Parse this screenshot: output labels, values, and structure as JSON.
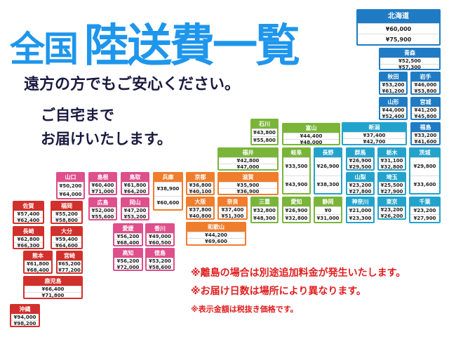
{
  "title": {
    "part1": "全国",
    "part2": "陸送費一覧"
  },
  "tagline": "遠方の方でもご安心ください。",
  "tagline2_line1": "ご自宅まで",
  "tagline2_line2": "お届けいたします。",
  "region_colors": {
    "hokkaido_tohoku": "#1f7cc4",
    "kanto_koshinetsu": "#23a3cc",
    "chubu": "#7ab53a",
    "kinki": "#ef7d2c",
    "chugoku_shikoku": "#de4f8c",
    "kyushu": "#d2302c"
  },
  "prefectures": [
    {
      "name": "北海道",
      "prices": [
        "¥60,000",
        "¥75,900"
      ],
      "region": "hokkaido_tohoku"
    },
    {
      "name": "青森",
      "prices": [
        "¥52,500",
        "¥57,300"
      ],
      "region": "hokkaido_tohoku"
    },
    {
      "name": "秋田",
      "prices": [
        "¥53,200",
        "¥61,200"
      ],
      "region": "hokkaido_tohoku"
    },
    {
      "name": "岩手",
      "prices": [
        "¥46,000",
        "¥53,800"
      ],
      "region": "hokkaido_tohoku"
    },
    {
      "name": "山形",
      "prices": [
        "¥44,000",
        "¥52,400"
      ],
      "region": "hokkaido_tohoku"
    },
    {
      "name": "宮城",
      "prices": [
        "¥41,200",
        "¥45,800"
      ],
      "region": "hokkaido_tohoku"
    },
    {
      "name": "新潟",
      "prices": [
        "¥37,400",
        "¥42,700"
      ],
      "region": "kanto_koshinetsu"
    },
    {
      "name": "福島",
      "prices": [
        "¥33,200",
        "¥41,600"
      ],
      "region": "hokkaido_tohoku"
    },
    {
      "name": "石川",
      "prices": [
        "¥43,800",
        "¥55,800"
      ],
      "region": "chubu"
    },
    {
      "name": "富山",
      "prices": [
        "¥44,400",
        "¥48,000"
      ],
      "region": "chubu"
    },
    {
      "name": "福井",
      "prices": [
        "¥42,800",
        "¥47,000"
      ],
      "region": "chubu"
    },
    {
      "name": "岐阜",
      "prices": [
        "¥33,500",
        "¥43,900"
      ],
      "region": "chubu"
    },
    {
      "name": "長野",
      "prices": [
        "¥26,900",
        "¥38,300"
      ],
      "region": "kanto_koshinetsu"
    },
    {
      "name": "群馬",
      "prices": [
        "¥26,900",
        "¥29,500"
      ],
      "region": "kanto_koshinetsu"
    },
    {
      "name": "栃木",
      "prices": [
        "¥31,100",
        "¥32,800"
      ],
      "region": "kanto_koshinetsu"
    },
    {
      "name": "茨城",
      "prices": [
        "¥29,800",
        "¥33,600"
      ],
      "region": "kanto_koshinetsu"
    },
    {
      "name": "山梨",
      "prices": [
        "¥23,200",
        "¥27,800"
      ],
      "region": "kanto_koshinetsu"
    },
    {
      "name": "埼玉",
      "prices": [
        "¥25,500",
        "¥27,900"
      ],
      "region": "kanto_koshinetsu"
    },
    {
      "name": "京都",
      "prices": [
        "¥36,800",
        "¥40,100"
      ],
      "region": "kinki"
    },
    {
      "name": "滋賀",
      "prices": [
        "¥35,900",
        "¥36,900"
      ],
      "region": "kinki"
    },
    {
      "name": "兵庫",
      "prices": [
        "¥38,900",
        "¥60,600"
      ],
      "region": "kinki"
    },
    {
      "name": "大阪",
      "prices": [
        "¥37,800",
        "¥40,800"
      ],
      "region": "kinki"
    },
    {
      "name": "奈良",
      "prices": [
        "¥37,400",
        "¥51,300"
      ],
      "region": "kinki"
    },
    {
      "name": "三重",
      "prices": [
        "¥32,800",
        "¥48,300"
      ],
      "region": "chubu"
    },
    {
      "name": "愛知",
      "prices": [
        "¥26,900",
        "¥32,800"
      ],
      "region": "chubu"
    },
    {
      "name": "静岡",
      "prices": [
        "¥0",
        "¥31,000"
      ],
      "region": "chubu"
    },
    {
      "name": "神奈川",
      "prices": [
        "¥21,000",
        "¥23,300"
      ],
      "region": "kanto_koshinetsu"
    },
    {
      "name": "東京",
      "prices": [
        "¥23,200",
        "¥26,200"
      ],
      "region": "kanto_koshinetsu"
    },
    {
      "name": "千葉",
      "prices": [
        "¥23,200",
        "¥27,900"
      ],
      "region": "kanto_koshinetsu"
    },
    {
      "name": "和歌山",
      "prices": [
        "¥44,200",
        "¥69,600"
      ],
      "region": "kinki"
    },
    {
      "name": "山口",
      "prices": [
        "¥50,200",
        "¥64,000"
      ],
      "region": "chugoku_shikoku"
    },
    {
      "name": "島根",
      "prices": [
        "¥60,400",
        "¥71,000"
      ],
      "region": "chugoku_shikoku"
    },
    {
      "name": "鳥取",
      "prices": [
        "¥61,800",
        "¥64,200"
      ],
      "region": "chugoku_shikoku"
    },
    {
      "name": "広島",
      "prices": [
        "¥52,000",
        "¥55,600"
      ],
      "region": "chugoku_shikoku"
    },
    {
      "name": "岡山",
      "prices": [
        "¥47,200",
        "¥53,200"
      ],
      "region": "chugoku_shikoku"
    },
    {
      "name": "佐賀",
      "prices": [
        "¥57,400",
        "¥62,400"
      ],
      "region": "kyushu"
    },
    {
      "name": "福岡",
      "prices": [
        "¥55,200",
        "¥58,800"
      ],
      "region": "kyushu"
    },
    {
      "name": "長崎",
      "prices": [
        "¥62,800",
        "¥66,300"
      ],
      "region": "kyushu"
    },
    {
      "name": "大分",
      "prices": [
        "¥59,400",
        "¥64,600"
      ],
      "region": "kyushu"
    },
    {
      "name": "熊本",
      "prices": [
        "¥61,800",
        "¥68,400"
      ],
      "region": "kyushu"
    },
    {
      "name": "宮崎",
      "prices": [
        "¥65,200",
        "¥77,200"
      ],
      "region": "kyushu"
    },
    {
      "name": "鹿児島",
      "prices": [
        "¥66,400",
        "¥71,800"
      ],
      "region": "kyushu"
    },
    {
      "name": "沖縄",
      "prices": [
        "¥94,000",
        "¥98,200"
      ],
      "region": "kyushu"
    },
    {
      "name": "愛媛",
      "prices": [
        "¥56,200",
        "¥68,400"
      ],
      "region": "chugoku_shikoku"
    },
    {
      "name": "香川",
      "prices": [
        "¥49,000",
        "¥60,500"
      ],
      "region": "chugoku_shikoku"
    },
    {
      "name": "高知",
      "prices": [
        "¥56,200",
        "¥72,000"
      ],
      "region": "chugoku_shikoku"
    },
    {
      "name": "徳島",
      "prices": [
        "¥53,200",
        "¥58,600"
      ],
      "region": "chugoku_shikoku"
    }
  ],
  "notes": [
    "※離島の場合は別途追加料金が発生いたします。",
    "※お届け日数は場所により異なります。",
    "※表示金額は税抜き価格です。"
  ]
}
